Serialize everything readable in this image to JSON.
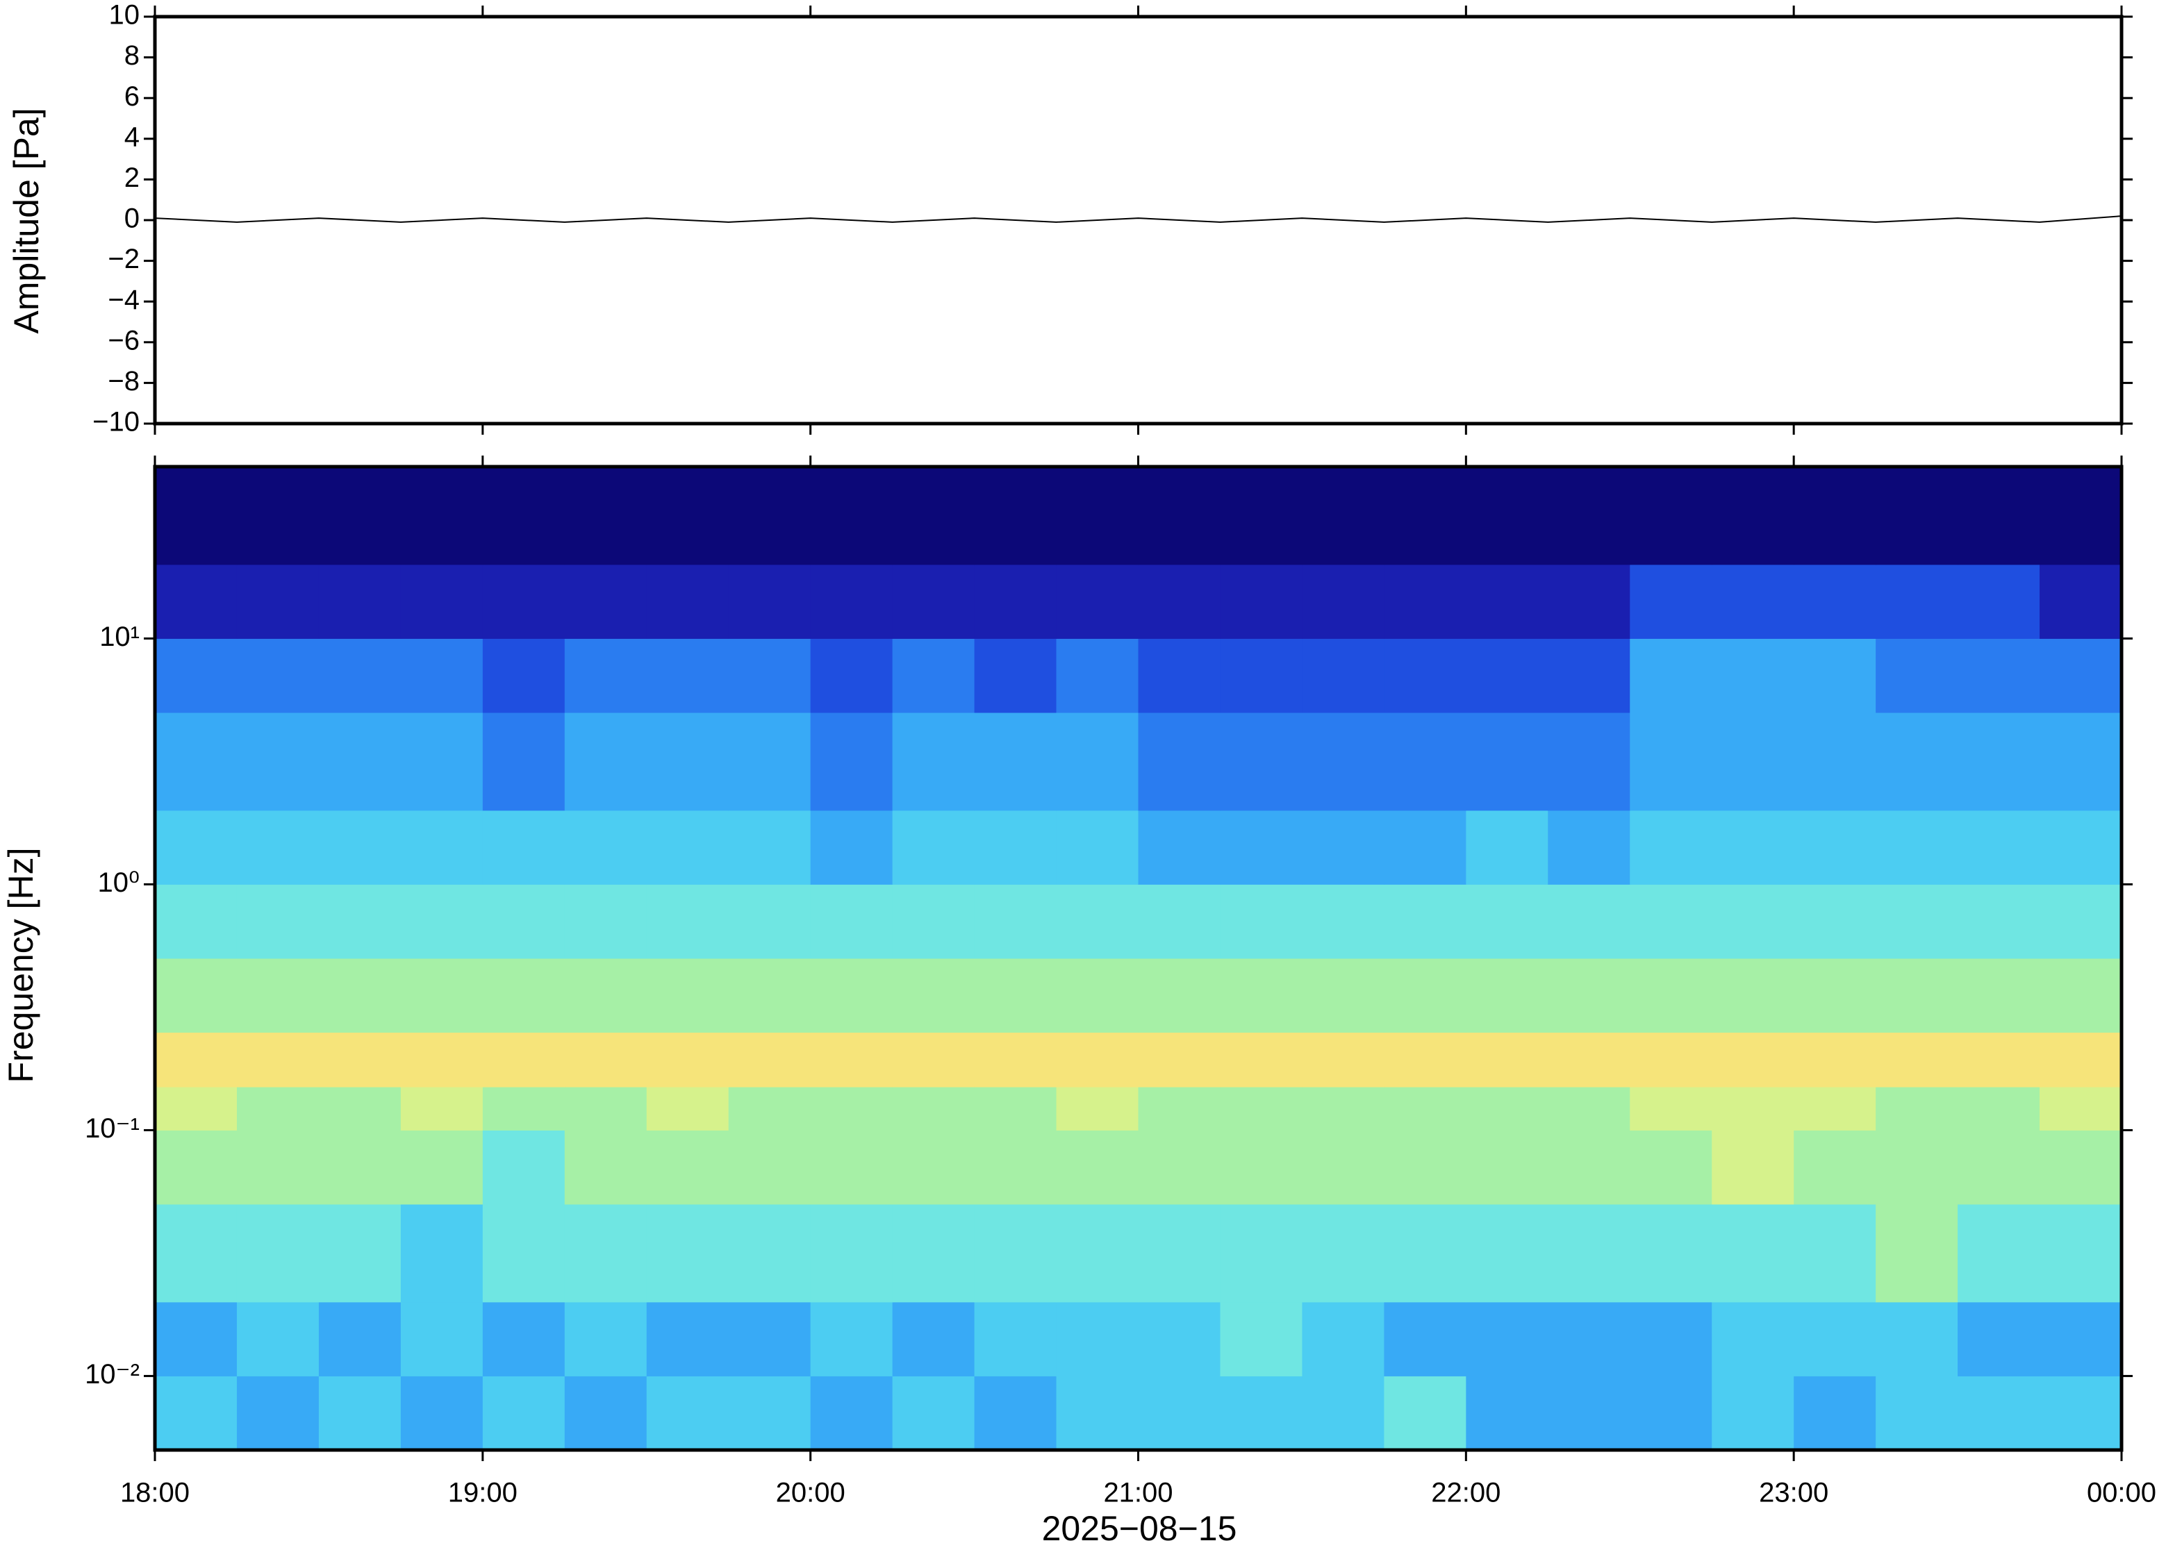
{
  "chart_data": [
    {
      "type": "line",
      "ylabel": "Amplitude [Pa]",
      "color": "#000000",
      "x": [
        18,
        18.25,
        18.5,
        18.75,
        19,
        19.25,
        19.5,
        19.75,
        20,
        20.25,
        20.5,
        20.75,
        21,
        21.25,
        21.5,
        21.75,
        22,
        22.25,
        22.5,
        22.75,
        23,
        23.25,
        23.5,
        23.75,
        24
      ],
      "values": [
        0.1,
        -0.1,
        0.1,
        -0.1,
        0.1,
        -0.1,
        0.1,
        -0.1,
        0.1,
        -0.1,
        0.1,
        -0.1,
        0.1,
        -0.1,
        0.1,
        -0.1,
        0.1,
        -0.1,
        0.1,
        -0.1,
        0.1,
        -0.1,
        0.1,
        -0.1,
        0.2
      ],
      "xlim": [
        18,
        24
      ],
      "ylim": [
        -10,
        10
      ],
      "yticks": [
        {
          "value": -10,
          "label": "−10"
        },
        {
          "value": -8,
          "label": "−8"
        },
        {
          "value": -6,
          "label": "−6"
        },
        {
          "value": -4,
          "label": "−4"
        },
        {
          "value": -2,
          "label": "−2"
        },
        0,
        2,
        4,
        6,
        8,
        10
      ]
    },
    {
      "type": "heatmap",
      "ylabel": "Frequency [Hz]",
      "xlabel": "2025−08−15",
      "log_y": true,
      "xlim": [
        18,
        24
      ],
      "ylim": [
        0.005,
        50
      ],
      "xticks": [
        {
          "value": 18,
          "label": "18:00"
        },
        {
          "value": 19,
          "label": "19:00"
        },
        {
          "value": 20,
          "label": "20:00"
        },
        {
          "value": 21,
          "label": "21:00"
        },
        {
          "value": 22,
          "label": "22:00"
        },
        {
          "value": 23,
          "label": "23:00"
        },
        {
          "value": 24,
          "label": "00:00"
        }
      ],
      "yticks": [
        {
          "value": 0.01,
          "label": "10⁻²"
        },
        {
          "value": 0.1,
          "label": "10⁻¹"
        },
        {
          "value": 1,
          "label": "10⁰"
        },
        {
          "value": 10,
          "label": "10¹"
        }
      ],
      "xedges": [
        18,
        18.25,
        18.5,
        18.75,
        19,
        19.25,
        19.5,
        19.75,
        20,
        20.25,
        20.5,
        20.75,
        21,
        21.25,
        21.5,
        21.75,
        22,
        22.25,
        22.5,
        22.75,
        23,
        23.25,
        23.5,
        23.75,
        24
      ],
      "yedges": [
        0.005,
        0.01,
        0.02,
        0.05,
        0.1,
        0.15,
        0.25,
        0.5,
        1,
        2,
        5,
        10,
        20,
        50
      ],
      "zlim": [
        0,
        10
      ],
      "colormap": [
        "#0c0878",
        "#1a1fb0",
        "#1f4fe0",
        "#2a7cf0",
        "#38aaf6",
        "#4ccdf2",
        "#6fe6e2",
        "#a6f0a6",
        "#d6f28c",
        "#f6e47a",
        "#f8b060"
      ],
      "z": [
        [
          5,
          4,
          5,
          4,
          5,
          4,
          5,
          5,
          4,
          5,
          4,
          5,
          5,
          5,
          5,
          6,
          4,
          4,
          4,
          5,
          4,
          5,
          5,
          5
        ],
        [
          4,
          5,
          4,
          5,
          4,
          5,
          4,
          4,
          5,
          4,
          5,
          5,
          5,
          6,
          5,
          4,
          4,
          4,
          4,
          5,
          5,
          5,
          4,
          4
        ],
        [
          6,
          6,
          6,
          5,
          6,
          6,
          6,
          6,
          6,
          6,
          6,
          6,
          6,
          6,
          6,
          6,
          6,
          6,
          6,
          6,
          6,
          7,
          6,
          6
        ],
        [
          7,
          7,
          7,
          7,
          6,
          7,
          7,
          7,
          7,
          7,
          7,
          7,
          7,
          7,
          7,
          7,
          7,
          7,
          7,
          8,
          7,
          7,
          7,
          7
        ],
        [
          8,
          7,
          7,
          8,
          7,
          7,
          8,
          7,
          7,
          7,
          7,
          8,
          7,
          7,
          7,
          7,
          7,
          7,
          8,
          8,
          8,
          7,
          7,
          8
        ],
        [
          9,
          9,
          9,
          9,
          9,
          9,
          9,
          9,
          9,
          9,
          9,
          9,
          9,
          9,
          9,
          9,
          9,
          9,
          9,
          9,
          9,
          9,
          9,
          9
        ],
        [
          7,
          7,
          7,
          7,
          7,
          7,
          7,
          7,
          7,
          7,
          7,
          7,
          7,
          7,
          7,
          7,
          7,
          7,
          7,
          7,
          7,
          7,
          7,
          7
        ],
        [
          6,
          6,
          6,
          6,
          6,
          6,
          6,
          6,
          6,
          6,
          6,
          6,
          6,
          6,
          6,
          6,
          6,
          6,
          6,
          6,
          6,
          6,
          6,
          6
        ],
        [
          5,
          5,
          5,
          5,
          5,
          5,
          5,
          5,
          4,
          5,
          5,
          5,
          4,
          4,
          4,
          4,
          5,
          4,
          5,
          5,
          5,
          5,
          5,
          5
        ],
        [
          4,
          4,
          4,
          4,
          3,
          4,
          4,
          4,
          3,
          4,
          4,
          4,
          3,
          3,
          3,
          3,
          3,
          3,
          4,
          4,
          4,
          4,
          4,
          4
        ],
        [
          3,
          3,
          3,
          3,
          2,
          3,
          3,
          3,
          2,
          3,
          2,
          3,
          2,
          2,
          2,
          2,
          2,
          2,
          4,
          4,
          4,
          3,
          3,
          3
        ],
        [
          1,
          1,
          1,
          1,
          1,
          1,
          1,
          1,
          1,
          1,
          1,
          1,
          1,
          1,
          1,
          1,
          1,
          1,
          2,
          2,
          2,
          2,
          2,
          1
        ],
        [
          0,
          0,
          0,
          0,
          0,
          0,
          0,
          0,
          0,
          0,
          0,
          0,
          0,
          0,
          0,
          0,
          0,
          0,
          0,
          0,
          0,
          0,
          0,
          0
        ]
      ]
    }
  ]
}
